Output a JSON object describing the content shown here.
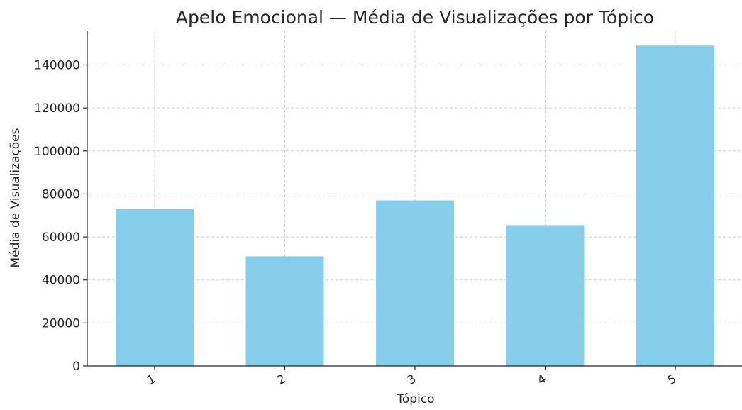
{
  "chart_data": {
    "type": "bar",
    "title": "Apelo Emocional — Média de Visualizações por Tópico",
    "xlabel": "Tópico",
    "ylabel": "Média de Visualizações",
    "categories": [
      "1",
      "2",
      "3",
      "4",
      "5"
    ],
    "values": [
      73000,
      51000,
      77000,
      65500,
      149000
    ],
    "ylim": [
      0,
      156000
    ],
    "yticks": [
      0,
      20000,
      40000,
      60000,
      80000,
      100000,
      120000,
      140000
    ],
    "ytick_labels": [
      "0",
      "20000",
      "40000",
      "60000",
      "80000",
      "100000",
      "120000",
      "140000"
    ],
    "grid": true,
    "bar_color": "#87CEEB",
    "x_tick_rotation_deg": 30
  }
}
